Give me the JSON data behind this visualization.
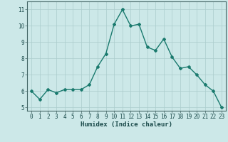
{
  "x": [
    0,
    1,
    2,
    3,
    4,
    5,
    6,
    7,
    8,
    9,
    10,
    11,
    12,
    13,
    14,
    15,
    16,
    17,
    18,
    19,
    20,
    21,
    22,
    23
  ],
  "y": [
    6.0,
    5.5,
    6.1,
    5.9,
    6.1,
    6.1,
    6.1,
    6.4,
    7.5,
    8.3,
    10.1,
    11.0,
    10.0,
    10.1,
    8.7,
    8.5,
    9.2,
    8.1,
    7.4,
    7.5,
    7.0,
    6.4,
    6.0,
    5.0
  ],
  "line_color": "#1a7a6e",
  "marker": "D",
  "marker_size": 2.0,
  "line_width": 1.0,
  "xlabel": "Humidex (Indice chaleur)",
  "xlim": [
    -0.5,
    23.5
  ],
  "ylim": [
    4.8,
    11.5
  ],
  "yticks": [
    5,
    6,
    7,
    8,
    9,
    10,
    11
  ],
  "xticks": [
    0,
    1,
    2,
    3,
    4,
    5,
    6,
    7,
    8,
    9,
    10,
    11,
    12,
    13,
    14,
    15,
    16,
    17,
    18,
    19,
    20,
    21,
    22,
    23
  ],
  "bg_color": "#cce8e8",
  "grid_color": "#aacccc",
  "tick_fontsize": 5.5,
  "xlabel_fontsize": 6.5
}
